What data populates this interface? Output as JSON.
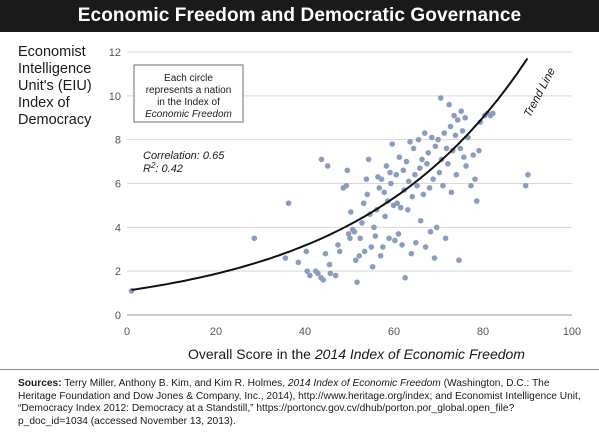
{
  "title": "Economic Freedom and Democratic Governance",
  "ylabel_lines": [
    "Economist",
    "Intelligence",
    "Unit's (EIU)",
    "Index of",
    "Democracy"
  ],
  "xlabel_prefix": "Overall Score in the ",
  "xlabel_italic": "2014 Index of Economic Freedom",
  "note_lines": [
    "Each circle",
    "represents a nation",
    "in the Index of",
    "Economic Freedom"
  ],
  "correlation_label": "Correlation: 0.65",
  "r2_label_prefix": "R",
  "r2_label_sup": "2",
  "r2_label_suffix": ": 0.42",
  "trend_label": "Trend Line",
  "sources": {
    "label": "Sources:",
    "part1": " Terry Miller, Anthony B. Kim, and Kim R. Holmes, ",
    "italic1": "2014 Index of Economic Freedom",
    "part2": " (Washington, D.C.: The Heritage Foundation and Dow Jones & Company, Inc., 2014), http://www.heritage.org/index; and Economist Intelligence Unit, “Democracy Index 2012: Democracy at a Standstill,” https://portoncv.gov.cv/dhub/porton.por_global.open_file?p_doc_id=1034 (accessed November 13, 2013)."
  },
  "colors": {
    "points": "#8a9cc2",
    "trend": "#111111",
    "grid": "#d9d9d9",
    "title_bg": "#1a1a1a"
  },
  "chart_data": {
    "type": "scatter",
    "title": "Economic Freedom and Democratic Governance",
    "xlabel": "Overall Score in the 2014 Index of Economic Freedom",
    "ylabel": "Economist Intelligence Unit's (EIU) Index of Democracy",
    "xlim": [
      0,
      100
    ],
    "ylim": [
      0,
      12
    ],
    "x_ticks": [
      0,
      20,
      40,
      60,
      80,
      100
    ],
    "y_ticks": [
      0,
      2,
      4,
      6,
      8,
      10,
      12
    ],
    "grid": "horizontal",
    "annotations": [
      "Correlation: 0.65",
      "R2: 0.42",
      "Trend Line"
    ],
    "trend_line": {
      "type": "exponential",
      "x": [
        1,
        20,
        40,
        50,
        60,
        70,
        80,
        90
      ],
      "y": [
        1.1,
        1.9,
        3.2,
        4.2,
        5.5,
        7.2,
        9.0,
        11.0
      ]
    },
    "points": [
      [
        1,
        1.1
      ],
      [
        28.6,
        3.5
      ],
      [
        35.6,
        2.6
      ],
      [
        36.3,
        5.1
      ],
      [
        38.5,
        2.4
      ],
      [
        40.5,
        2.0
      ],
      [
        40.3,
        2.9
      ],
      [
        41.1,
        1.8
      ],
      [
        42.4,
        2.0
      ],
      [
        42.9,
        1.9
      ],
      [
        43.6,
        1.7
      ],
      [
        44.1,
        1.6
      ],
      [
        44.6,
        2.8
      ],
      [
        45.5,
        2.3
      ],
      [
        45.7,
        1.9
      ],
      [
        43.7,
        7.1
      ],
      [
        45.1,
        6.8
      ],
      [
        46.9,
        1.8
      ],
      [
        47.4,
        3.2
      ],
      [
        47.8,
        2.9
      ],
      [
        48.6,
        5.8
      ],
      [
        49.5,
        6.6
      ],
      [
        49.3,
        5.9
      ],
      [
        49.8,
        3.7
      ],
      [
        50.1,
        3.5
      ],
      [
        50.3,
        4.7
      ],
      [
        50.7,
        3.9
      ],
      [
        51.1,
        3.8
      ],
      [
        51.4,
        2.5
      ],
      [
        51.7,
        1.5
      ],
      [
        52.2,
        2.7
      ],
      [
        52.4,
        3.5
      ],
      [
        52.8,
        4.2
      ],
      [
        53.2,
        5.1
      ],
      [
        53.4,
        2.9
      ],
      [
        53.8,
        6.2
      ],
      [
        54.0,
        5.5
      ],
      [
        54.3,
        7.1
      ],
      [
        54.6,
        4.6
      ],
      [
        54.9,
        3.1
      ],
      [
        55.2,
        2.2
      ],
      [
        55.5,
        4.0
      ],
      [
        55.8,
        3.6
      ],
      [
        56.1,
        4.8
      ],
      [
        56.4,
        6.3
      ],
      [
        56.7,
        5.8
      ],
      [
        57.0,
        2.7
      ],
      [
        57.2,
        6.2
      ],
      [
        57.5,
        3.1
      ],
      [
        57.8,
        5.6
      ],
      [
        58.0,
        4.5
      ],
      [
        58.3,
        6.8
      ],
      [
        58.6,
        5.2
      ],
      [
        58.9,
        3.5
      ],
      [
        59.1,
        6.5
      ],
      [
        59.3,
        6.0
      ],
      [
        59.6,
        7.8
      ],
      [
        59.9,
        5.0
      ],
      [
        60.2,
        3.4
      ],
      [
        60.5,
        6.4
      ],
      [
        60.7,
        5.1
      ],
      [
        61.0,
        3.7
      ],
      [
        61.2,
        7.2
      ],
      [
        61.5,
        4.9
      ],
      [
        61.8,
        3.2
      ],
      [
        62.1,
        6.6
      ],
      [
        62.3,
        5.7
      ],
      [
        62.5,
        1.7
      ],
      [
        62.8,
        7.0
      ],
      [
        63.1,
        4.8
      ],
      [
        63.3,
        6.1
      ],
      [
        63.6,
        7.9
      ],
      [
        63.9,
        2.8
      ],
      [
        64.1,
        5.4
      ],
      [
        64.4,
        7.6
      ],
      [
        64.7,
        6.4
      ],
      [
        64.9,
        3.3
      ],
      [
        65.2,
        5.9
      ],
      [
        65.5,
        8.0
      ],
      [
        65.8,
        6.7
      ],
      [
        66.0,
        4.3
      ],
      [
        66.3,
        7.1
      ],
      [
        66.6,
        5.5
      ],
      [
        66.9,
        8.3
      ],
      [
        67.1,
        3.1
      ],
      [
        67.4,
        6.9
      ],
      [
        67.7,
        7.4
      ],
      [
        68.0,
        5.8
      ],
      [
        68.2,
        3.8
      ],
      [
        68.5,
        8.1
      ],
      [
        68.8,
        6.2
      ],
      [
        69.1,
        2.6
      ],
      [
        69.3,
        7.7
      ],
      [
        69.6,
        4.0
      ],
      [
        69.9,
        8.0
      ],
      [
        70.2,
        6.5
      ],
      [
        70.5,
        9.9
      ],
      [
        70.7,
        7.1
      ],
      [
        71.0,
        5.9
      ],
      [
        71.3,
        8.3
      ],
      [
        71.6,
        3.5
      ],
      [
        71.8,
        7.6
      ],
      [
        72.1,
        6.9
      ],
      [
        72.4,
        9.6
      ],
      [
        72.7,
        8.6
      ],
      [
        72.9,
        5.6
      ],
      [
        73.2,
        7.5
      ],
      [
        73.5,
        9.1
      ],
      [
        73.8,
        8.2
      ],
      [
        74.0,
        6.4
      ],
      [
        74.3,
        8.9
      ],
      [
        74.6,
        2.5
      ],
      [
        74.9,
        7.6
      ],
      [
        75.1,
        9.3
      ],
      [
        75.4,
        8.4
      ],
      [
        75.7,
        7.2
      ],
      [
        76.0,
        9.0
      ],
      [
        76.2,
        6.8
      ],
      [
        76.6,
        8.1
      ],
      [
        77.3,
        5.9
      ],
      [
        77.8,
        7.3
      ],
      [
        78.2,
        6.2
      ],
      [
        78.6,
        5.2
      ],
      [
        79.1,
        7.5
      ],
      [
        79.4,
        8.8
      ],
      [
        80.4,
        9.1
      ],
      [
        81.0,
        9.2
      ],
      [
        81.7,
        9.1
      ],
      [
        82.2,
        9.2
      ],
      [
        89.6,
        5.9
      ],
      [
        90.1,
        6.4
      ]
    ]
  }
}
